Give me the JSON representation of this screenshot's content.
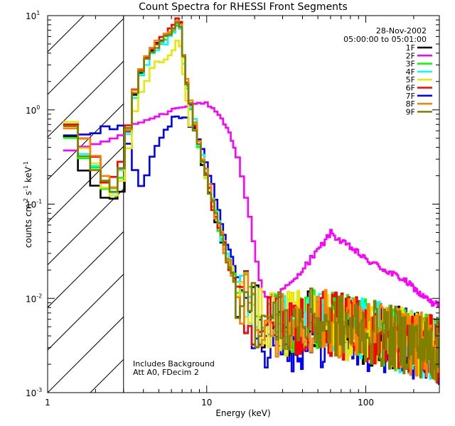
{
  "chart_data": {
    "type": "line",
    "title": "Count Spectra for RHESSI Front Segments",
    "xlabel": "Energy (keV)",
    "ylabel": "counts cm^-2 s^-1 keV^-1",
    "ylabel_parts": {
      "base": "counts cm",
      "e1": "-2",
      "mid1": " s",
      "e2": "-1",
      "mid2": " keV",
      "e3": "-1"
    },
    "xscale": "log",
    "yscale": "log",
    "xlim": [
      1,
      290
    ],
    "ylim": [
      0.001,
      10
    ],
    "x_ticks": [
      1,
      10,
      100
    ],
    "x_tick_labels": [
      "1",
      "10",
      "100"
    ],
    "y_ticks": [
      0.001,
      0.01,
      0.1,
      1,
      10
    ],
    "y_tick_labels": [
      {
        "base": "10",
        "exp": "-3"
      },
      {
        "base": "10",
        "exp": "-2"
      },
      {
        "base": "10",
        "exp": "-1"
      },
      {
        "base": "10",
        "exp": "0"
      },
      {
        "base": "10",
        "exp": "1"
      }
    ],
    "hatched_region_keV": [
      1,
      3
    ],
    "date": "28-Nov-2002",
    "time_range": "05:00:00 to 05:01:00",
    "annotations": [
      "Includes Background",
      "Att A0, FDecim 2"
    ],
    "legend_position": "top-right",
    "series": [
      {
        "name": "1F",
        "color": "#000000"
      },
      {
        "name": "2F",
        "color": "#ff00ff"
      },
      {
        "name": "3F",
        "color": "#00ff00"
      },
      {
        "name": "4F",
        "color": "#00ffff"
      },
      {
        "name": "5F",
        "color": "#e8e800"
      },
      {
        "name": "6F",
        "color": "#ff0000"
      },
      {
        "name": "7F",
        "color": "#0000ff"
      },
      {
        "name": "8F",
        "color": "#ff8000"
      },
      {
        "name": "9F",
        "color": "#808000"
      }
    ],
    "shapes": {
      "thermal": {
        "x": [
          1.25,
          1.4,
          1.6,
          1.85,
          2.1,
          2.4,
          2.7,
          3.0,
          3.3,
          3.6,
          3.9,
          4.2,
          4.6,
          5.0,
          5.4,
          5.8,
          6.2,
          6.6,
          6.9,
          7.2,
          7.6,
          8.0,
          8.5,
          9.0,
          9.6,
          10.3,
          11,
          12,
          13,
          14,
          15,
          16.5,
          18,
          20,
          22,
          25,
          28,
          32,
          36,
          40,
          45,
          50,
          55,
          60,
          70,
          80,
          90,
          100,
          120,
          140,
          160,
          180,
          200,
          230,
          260,
          290
        ],
        "y": [
          0.95,
          0.6,
          0.42,
          0.28,
          0.2,
          0.16,
          0.13,
          0.28,
          0.85,
          1.7,
          2.6,
          3.5,
          4.4,
          5.2,
          5.6,
          6.4,
          7.3,
          8.8,
          8.0,
          3.4,
          1.6,
          1.05,
          0.65,
          0.42,
          0.26,
          0.16,
          0.095,
          0.055,
          0.034,
          0.022,
          0.016,
          0.012,
          0.009,
          0.0075,
          0.0065,
          0.006,
          0.0058,
          0.0058,
          0.006,
          0.006,
          0.0062,
          0.006,
          0.0062,
          0.0058,
          0.0055,
          0.0052,
          0.005,
          0.0048,
          0.0045,
          0.0042,
          0.004,
          0.0038,
          0.0036,
          0.0034,
          0.0032,
          0.003
        ]
      },
      "seg2": {
        "x": [
          1.25,
          1.4,
          1.6,
          1.85,
          2.1,
          2.4,
          2.7,
          3.0,
          3.3,
          3.6,
          4.0,
          4.5,
          5.0,
          5.5,
          6.0,
          6.5,
          7.0,
          7.5,
          8.0,
          8.5,
          9.0,
          9.5,
          10,
          11,
          12,
          13,
          14,
          15,
          16,
          17,
          18,
          19,
          20,
          21,
          22,
          23,
          24,
          26,
          28,
          30,
          33,
          36,
          40,
          45,
          50,
          55,
          60,
          65,
          70,
          80,
          90,
          100,
          110,
          120,
          140,
          160,
          180,
          200,
          220,
          240,
          260,
          290
        ],
        "y": [
          0.33,
          0.36,
          0.4,
          0.42,
          0.44,
          0.48,
          0.5,
          0.55,
          0.62,
          0.7,
          0.76,
          0.82,
          0.86,
          0.92,
          1.0,
          1.05,
          1.1,
          1.12,
          1.12,
          1.15,
          1.18,
          1.2,
          1.15,
          1.0,
          0.85,
          0.7,
          0.55,
          0.4,
          0.27,
          0.17,
          0.1,
          0.06,
          0.035,
          0.02,
          0.014,
          0.011,
          0.01,
          0.0105,
          0.011,
          0.0125,
          0.014,
          0.016,
          0.02,
          0.026,
          0.032,
          0.04,
          0.05,
          0.045,
          0.04,
          0.035,
          0.03,
          0.026,
          0.024,
          0.022,
          0.019,
          0.017,
          0.015,
          0.013,
          0.011,
          0.01,
          0.009,
          0.0085
        ]
      },
      "seg7": {
        "x": [
          1.25,
          1.5,
          2.0,
          2.5,
          3.0,
          3.3,
          3.6,
          3.9,
          4.2,
          4.5,
          4.8,
          5.1,
          5.5,
          6.0,
          6.5,
          7.0,
          7.5,
          8.0,
          8.5,
          9.0,
          9.5,
          10,
          11,
          12,
          13,
          14,
          15,
          16.5,
          18,
          20,
          22,
          25,
          28,
          32,
          36,
          40,
          45,
          50,
          60,
          70,
          80,
          100,
          120,
          150,
          180,
          220,
          260,
          290
        ],
        "y": [
          0.55,
          0.6,
          0.62,
          0.62,
          0.65,
          0.4,
          0.22,
          0.16,
          0.2,
          0.28,
          0.38,
          0.5,
          0.6,
          0.75,
          0.85,
          0.8,
          0.78,
          0.7,
          0.62,
          0.5,
          0.38,
          0.28,
          0.15,
          0.085,
          0.05,
          0.03,
          0.02,
          0.013,
          0.009,
          0.007,
          0.0055,
          0.0048,
          0.0045,
          0.0045,
          0.0045,
          0.0046,
          0.0048,
          0.005,
          0.0052,
          0.005,
          0.005,
          0.0048,
          0.0045,
          0.0042,
          0.004,
          0.0036,
          0.0033,
          0.003
        ]
      }
    }
  }
}
